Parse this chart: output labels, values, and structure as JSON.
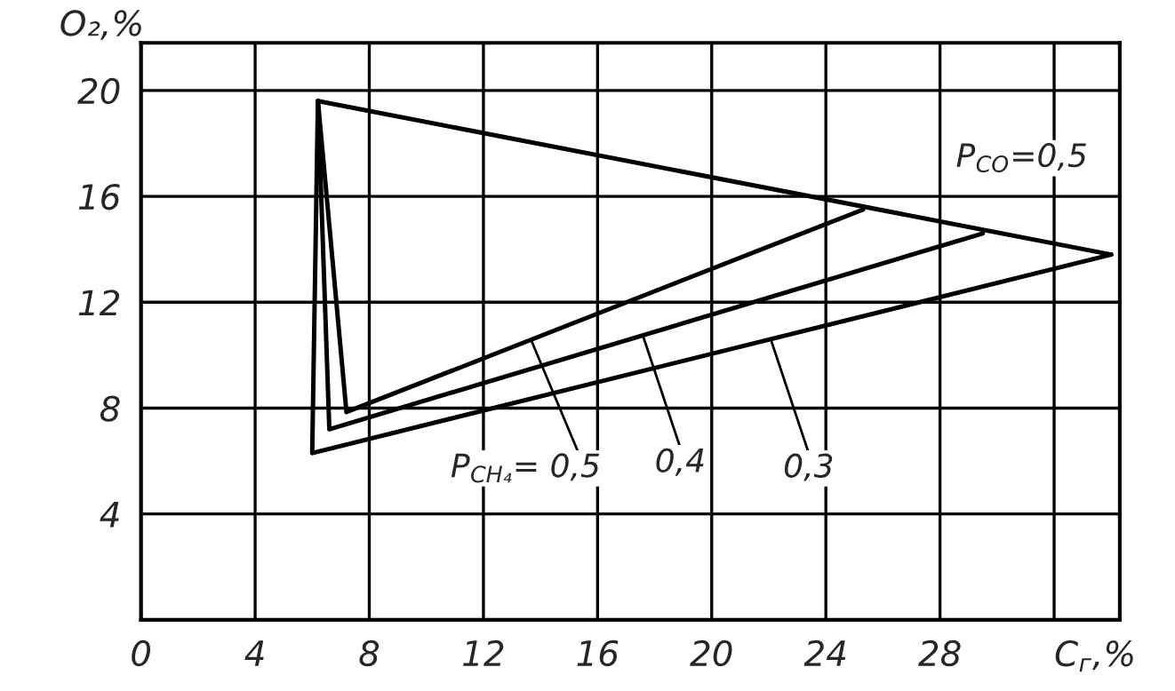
{
  "chart_data": {
    "type": "line",
    "xlabel": "C$_{г}$,%",
    "ylabel": "O₂,%",
    "series": [
      {
        "color": "#000000",
        "x": [
          6.2,
          34.0
        ],
        "values": [
          19.6,
          13.8
        ]
      },
      {
        "color": "#000000",
        "x": [
          6.2,
          6.0,
          34.0
        ],
        "values": [
          19.6,
          6.3,
          13.8
        ]
      },
      {
        "color": "#000000",
        "x": [
          6.2,
          6.6,
          29.5
        ],
        "values": [
          19.6,
          7.2,
          14.6
        ]
      },
      {
        "color": "#000000",
        "x": [
          6.2,
          7.2,
          25.3
        ],
        "values": [
          19.6,
          7.85,
          15.5
        ]
      }
    ],
    "annotations": [
      {
        "text": "P$_{CH₄}$= 0,5",
        "x": 13.7,
        "y": 10.5
      },
      {
        "text": "0,4",
        "x": 17.6,
        "y": 10.7
      },
      {
        "text": "0,3",
        "x": 22.1,
        "y": 10.5
      },
      "P$_{CO}$=0,5"
    ],
    "xlim": [
      0,
      34.3
    ],
    "ylim": [
      0,
      21.8
    ],
    "xticks": [
      0,
      4,
      8,
      12,
      16,
      20,
      24,
      28,
      {
        "value": 32,
        "label": null
      }
    ],
    "yticks": [
      4,
      8,
      12,
      16,
      20
    ],
    "grid": true,
    "legend": false,
    "marker": "none",
    "line_style": "solid"
  }
}
